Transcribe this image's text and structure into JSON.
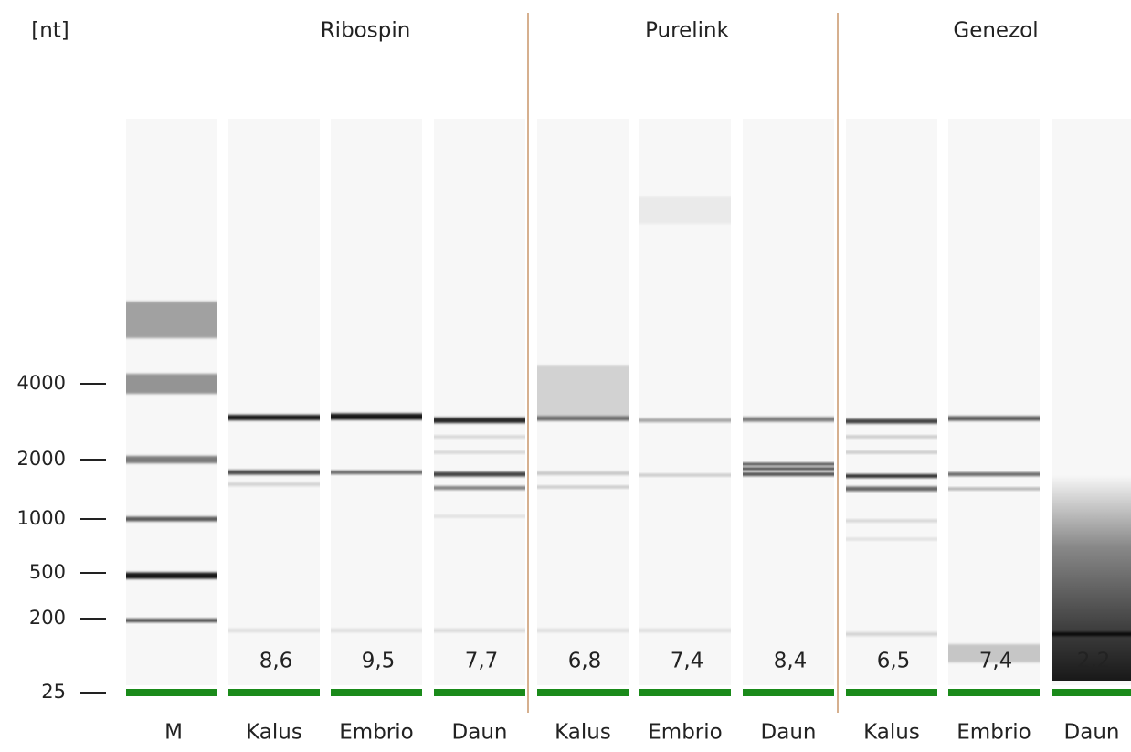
{
  "unit": "[nt]",
  "groups": [
    "Ribospin",
    "Purelink",
    "Genezol"
  ],
  "ladder": [
    4000,
    2000,
    1000,
    500,
    200,
    25
  ],
  "lanes": [
    "M",
    "Kalus",
    "Embrio",
    "Daun",
    "Kalus",
    "Embrio",
    "Daun",
    "Kalus",
    "Embrio",
    "Daun"
  ],
  "rin": [
    "8,6",
    "9,5",
    "7,7",
    "6,8",
    "7,4",
    "8,4",
    "6,5",
    "7,4",
    "2,2"
  ]
}
